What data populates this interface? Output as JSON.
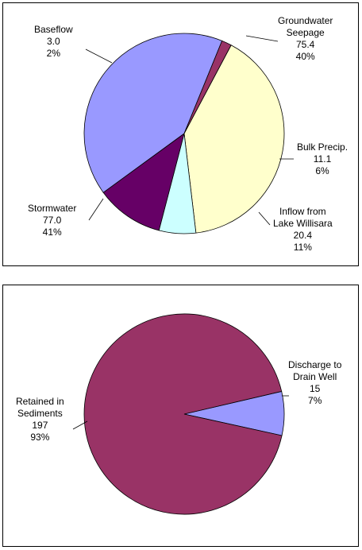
{
  "chart_data": [
    {
      "type": "pie",
      "slices": [
        {
          "label": "Groundwater Seepage",
          "label_lines": [
            "Groundwater",
            "Seepage"
          ],
          "value": 75.4,
          "percent": "40%",
          "value_text": "75.4",
          "color": "#ffffcc"
        },
        {
          "label": "Bulk Precip.",
          "label_lines": [
            "Bulk Precip."
          ],
          "value": 11.1,
          "percent": "6%",
          "value_text": "11.1",
          "color": "#ccffff"
        },
        {
          "label": "Inflow  from Lake Willisara",
          "label_lines": [
            "Inflow  from",
            "Lake Willisara"
          ],
          "value": 20.4,
          "percent": "11%",
          "value_text": "20.4",
          "color": "#660066"
        },
        {
          "label": "Stormwater",
          "label_lines": [
            "Stormwater"
          ],
          "value": 77.0,
          "percent": "41%",
          "value_text": "77.0",
          "color": "#9999ff"
        },
        {
          "label": "Baseflow",
          "label_lines": [
            "Baseflow"
          ],
          "value": 3.0,
          "percent": "2%",
          "value_text": "3.0",
          "color": "#993366"
        }
      ]
    },
    {
      "type": "pie",
      "slices": [
        {
          "label": "Discharge to Drain Well",
          "label_lines": [
            "Discharge to",
            "Drain Well"
          ],
          "value": 15,
          "percent": "7%",
          "value_text": "15",
          "color": "#9999ff"
        },
        {
          "label": "Retained in Sediments",
          "label_lines": [
            "Retained in",
            "Sediments"
          ],
          "value": 197,
          "percent": "93%",
          "value_text": "197",
          "color": "#993366"
        }
      ]
    }
  ]
}
